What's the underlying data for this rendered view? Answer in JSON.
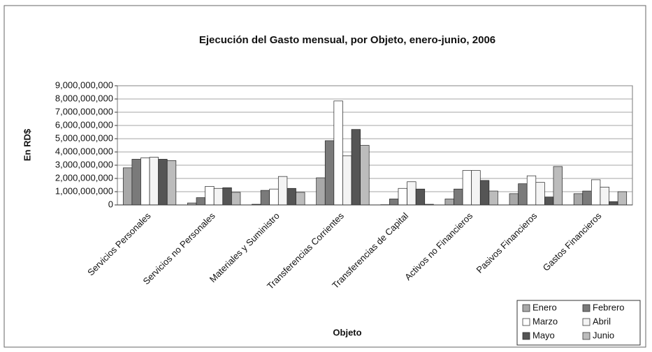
{
  "chart_data": {
    "type": "bar",
    "title": "Ejecución del Gasto mensual, por Objeto, enero-junio, 2006",
    "x_label": "Objeto",
    "y_label": "En RD$",
    "categories": [
      "Servicios Personales",
      "Servicios no Personales",
      "Materiales y Suministro",
      "Transferencias Corrientes",
      "Transferencias de Capital",
      "Activos no Financieros",
      "Pasivos Financieros",
      "Gastos Financieros"
    ],
    "series": [
      {
        "name": "Enero",
        "color": "#a8a8a8",
        "values": [
          2800000000,
          150000000,
          50000000,
          2050000000,
          20000000,
          450000000,
          850000000,
          850000000
        ]
      },
      {
        "name": "Febrero",
        "color": "#7a7a7a",
        "values": [
          3450000000,
          550000000,
          1100000000,
          4850000000,
          450000000,
          1200000000,
          1600000000,
          1050000000
        ]
      },
      {
        "name": "Marzo",
        "color": "#ffffff",
        "values": [
          3550000000,
          1400000000,
          1200000000,
          7850000000,
          1250000000,
          2600000000,
          2200000000,
          1900000000
        ]
      },
      {
        "name": "Abril",
        "color": "#f4f4f4",
        "values": [
          3600000000,
          1250000000,
          2150000000,
          3700000000,
          1750000000,
          2600000000,
          1700000000,
          1350000000
        ]
      },
      {
        "name": "Mayo",
        "color": "#555555",
        "values": [
          3450000000,
          1300000000,
          1250000000,
          5700000000,
          1200000000,
          1850000000,
          600000000,
          250000000
        ]
      },
      {
        "name": "Junio",
        "color": "#bcbcbc",
        "values": [
          3350000000,
          950000000,
          950000000,
          4500000000,
          50000000,
          1050000000,
          2900000000,
          1000000000
        ]
      }
    ],
    "ylim": [
      0,
      9000000000
    ],
    "yticks": [
      0,
      {
        "value": 1000000000,
        "label": "1,000,000,000"
      },
      {
        "value": 2000000000,
        "label": "2,000,000,000"
      },
      {
        "value": 3000000000,
        "label": "3,000,000,000"
      },
      {
        "value": 4000000000,
        "label": "4,000,000,000"
      },
      {
        "value": 5000000000,
        "label": "5,000,000,000"
      },
      {
        "value": 6000000000,
        "label": "6,000,000,000"
      },
      {
        "value": 7000000000,
        "label": "7,000,000,000"
      },
      {
        "value": 8000000000,
        "label": "8,000,000,000"
      },
      {
        "value": 9000000000,
        "label": "9,000,000,000"
      }
    ],
    "grid": true,
    "legend_position": "lower right"
  }
}
